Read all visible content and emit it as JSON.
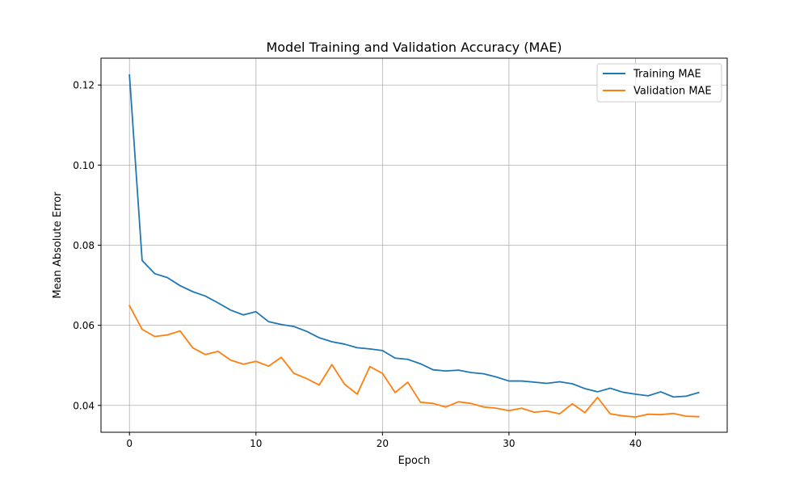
{
  "chart_data": {
    "type": "line",
    "title": "Model Training and Validation Accuracy (MAE)",
    "xlabel": "Epoch",
    "ylabel": "Mean Absolute Error",
    "xlim": [
      -2.25,
      47.25
    ],
    "ylim": [
      0.0333,
      0.1267
    ],
    "xticks": [
      0,
      10,
      20,
      30,
      40
    ],
    "yticks": [
      0.04,
      0.06,
      0.08,
      0.1,
      0.12
    ],
    "ytick_labels": [
      "0.04",
      "0.06",
      "0.08",
      "0.10",
      "0.12"
    ],
    "grid": true,
    "legend_position": "top-right",
    "x": [
      0,
      1,
      2,
      3,
      4,
      5,
      6,
      7,
      8,
      9,
      10,
      11,
      12,
      13,
      14,
      15,
      16,
      17,
      18,
      19,
      20,
      21,
      22,
      23,
      24,
      25,
      26,
      27,
      28,
      29,
      30,
      31,
      32,
      33,
      34,
      35,
      36,
      37,
      38,
      39,
      40,
      41,
      42,
      43,
      44,
      45
    ],
    "series": [
      {
        "name": "Training MAE",
        "color": "#1f77b4",
        "values": [
          0.1225,
          0.0762,
          0.0729,
          0.0719,
          0.0699,
          0.0684,
          0.0673,
          0.0656,
          0.0638,
          0.0626,
          0.0634,
          0.0609,
          0.0602,
          0.0597,
          0.0585,
          0.0569,
          0.0559,
          0.0553,
          0.0544,
          0.0541,
          0.0537,
          0.0518,
          0.0515,
          0.0504,
          0.0489,
          0.0486,
          0.0488,
          0.0482,
          0.0479,
          0.0471,
          0.0461,
          0.0461,
          0.0458,
          0.0455,
          0.0459,
          0.0454,
          0.0442,
          0.0434,
          0.0443,
          0.0433,
          0.0428,
          0.0424,
          0.0434,
          0.0421,
          0.0423,
          0.0432
        ]
      },
      {
        "name": "Validation MAE",
        "color": "#ff7f0e",
        "values": [
          0.0649,
          0.059,
          0.0572,
          0.0576,
          0.0586,
          0.0544,
          0.0527,
          0.0535,
          0.0513,
          0.0503,
          0.051,
          0.0498,
          0.052,
          0.048,
          0.0467,
          0.0451,
          0.0502,
          0.0453,
          0.0428,
          0.0497,
          0.048,
          0.0432,
          0.0458,
          0.0408,
          0.0405,
          0.0396,
          0.0409,
          0.0405,
          0.0396,
          0.0393,
          0.0387,
          0.0393,
          0.0383,
          0.0386,
          0.0379,
          0.0404,
          0.0382,
          0.042,
          0.0379,
          0.0374,
          0.0371,
          0.0378,
          0.0377,
          0.038,
          0.0373,
          0.0372
        ]
      }
    ]
  }
}
